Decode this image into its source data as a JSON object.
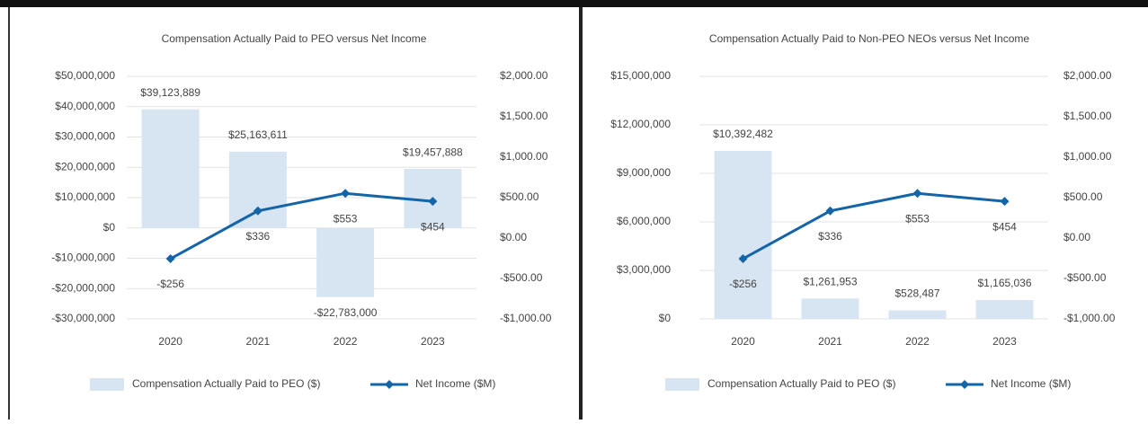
{
  "chart_data": [
    {
      "type": "combo",
      "title": "Compensation Actually Paid to PEO versus Net Income",
      "categories": [
        "2020",
        "2021",
        "2022",
        "2023"
      ],
      "ylim": [
        -30000000,
        50000000
      ],
      "yticks": [
        {
          "value": 50000000,
          "label": "$50,000,000"
        },
        {
          "value": 40000000,
          "label": "$40,000,000"
        },
        {
          "value": 30000000,
          "label": "$30,000,000"
        },
        {
          "value": 20000000,
          "label": "$20,000,000"
        },
        {
          "value": 10000000,
          "label": "$10,000,000"
        },
        {
          "value": 0,
          "label": "$0"
        },
        {
          "value": -10000000,
          "label": "-$10,000,000"
        },
        {
          "value": -20000000,
          "label": "-$20,000,000"
        },
        {
          "value": -30000000,
          "label": "-$30,000,000"
        }
      ],
      "y2lim": [
        -1000,
        2000
      ],
      "y2ticks": [
        {
          "value": 2000,
          "label": "$2,000.00"
        },
        {
          "value": 1500,
          "label": "$1,500.00"
        },
        {
          "value": 1000,
          "label": "$1,000.00"
        },
        {
          "value": 500,
          "label": "$500.00"
        },
        {
          "value": 0,
          "label": "$0.00"
        },
        {
          "value": -500,
          "label": "-$500.00"
        },
        {
          "value": -1000,
          "label": "-$1,000.00"
        }
      ],
      "grid": true,
      "series": [
        {
          "name": "Compensation Actually Paid to PEO ($)",
          "type": "bar",
          "color": "#d7e4f1",
          "values": [
            39123889,
            25163611,
            -22783000,
            19457888
          ],
          "value_labels": [
            "$39,123,889",
            "$25,163,611",
            "-$22,783,000",
            "$19,457,888"
          ]
        },
        {
          "name": "Net Income ($M)",
          "type": "line",
          "axis": "y2",
          "color": "#1464a8",
          "values": [
            -256,
            336,
            553,
            454
          ],
          "value_labels": [
            "-$256",
            "$336",
            "$553",
            "$454"
          ]
        }
      ]
    },
    {
      "type": "combo",
      "title": "Compensation Actually Paid to Non-PEO NEOs versus Net Income",
      "categories": [
        "2020",
        "2021",
        "2022",
        "2023"
      ],
      "ylim": [
        0,
        15000000
      ],
      "yticks": [
        {
          "value": 15000000,
          "label": "$15,000,000"
        },
        {
          "value": 12000000,
          "label": "$12,000,000"
        },
        {
          "value": 9000000,
          "label": "$9,000,000"
        },
        {
          "value": 6000000,
          "label": "$6,000,000"
        },
        {
          "value": 3000000,
          "label": "$3,000,000"
        },
        {
          "value": 0,
          "label": "$0"
        }
      ],
      "y2lim": [
        -1000,
        2000
      ],
      "y2ticks": [
        {
          "value": 2000,
          "label": "$2,000.00"
        },
        {
          "value": 1500,
          "label": "$1,500.00"
        },
        {
          "value": 1000,
          "label": "$1,000.00"
        },
        {
          "value": 500,
          "label": "$500.00"
        },
        {
          "value": 0,
          "label": "$0.00"
        },
        {
          "value": -500,
          "label": "-$500.00"
        },
        {
          "value": -1000,
          "label": "-$1,000.00"
        }
      ],
      "grid": true,
      "series": [
        {
          "name": "Compensation Actually Paid to PEO ($)",
          "type": "bar",
          "color": "#d7e4f1",
          "values": [
            10392482,
            1261953,
            528487,
            1165036
          ],
          "value_labels": [
            "$10,392,482",
            "$1,261,953",
            "$528,487",
            "$1,165,036"
          ]
        },
        {
          "name": "Net Income ($M)",
          "type": "line",
          "axis": "y2",
          "color": "#1464a8",
          "values": [
            -256,
            336,
            553,
            454
          ],
          "value_labels": [
            "-$256",
            "$336",
            "$553",
            "$454"
          ]
        }
      ]
    }
  ]
}
